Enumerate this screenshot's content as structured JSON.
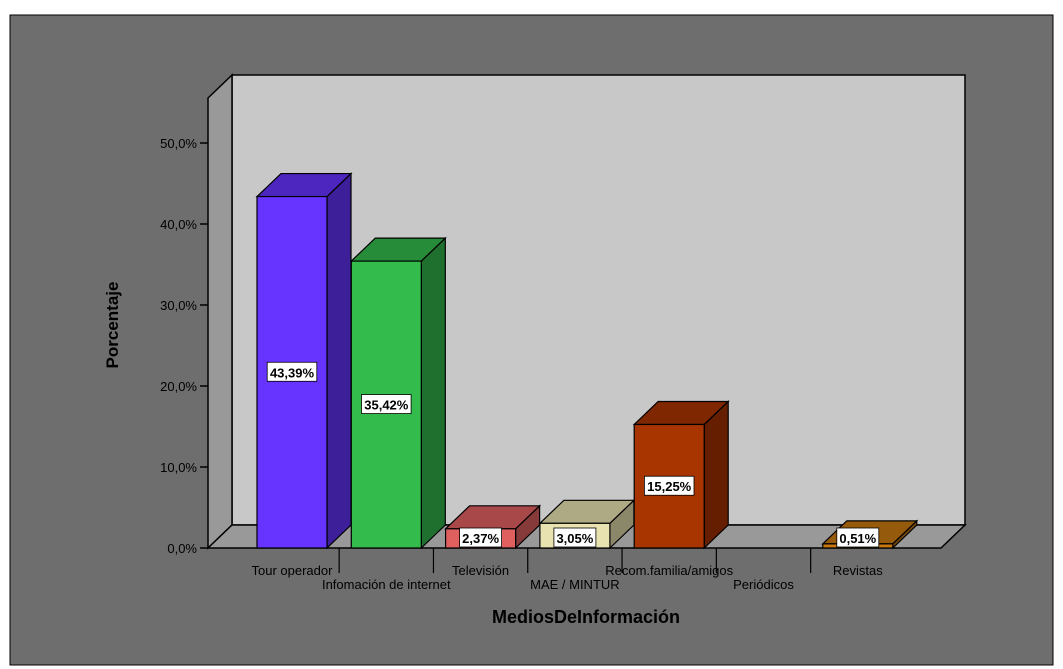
{
  "chart_data": {
    "type": "bar",
    "title": "",
    "xlabel": "MediosDeInformación",
    "ylabel": "Porcentaje",
    "ylim": [
      0,
      55
    ],
    "yticks": [
      "0,0%",
      "10,0%",
      "20,0%",
      "30,0%",
      "40,0%",
      "50,0%"
    ],
    "categories": [
      "Tour operador",
      "Infomación de internet",
      "Televisión",
      "MAE / MINTUR",
      "Recom.familia/amigos",
      "Periódicos",
      "Revistas"
    ],
    "values": [
      43.39,
      35.42,
      2.37,
      3.05,
      15.25,
      0,
      0.51
    ],
    "value_labels": [
      "43,39%",
      "35,42%",
      "2,37%",
      "3,05%",
      "15,25%",
      "",
      "0,51%"
    ],
    "colors": [
      "#6633ff",
      "#33bb4c",
      "#e06060",
      "#e8e2b0",
      "#a83400",
      "#888888",
      "#c87810"
    ],
    "grid": false,
    "legend": "none",
    "style": "3d",
    "plot_background": "#c8c8c8",
    "outer_background": "#6e6e6e"
  }
}
